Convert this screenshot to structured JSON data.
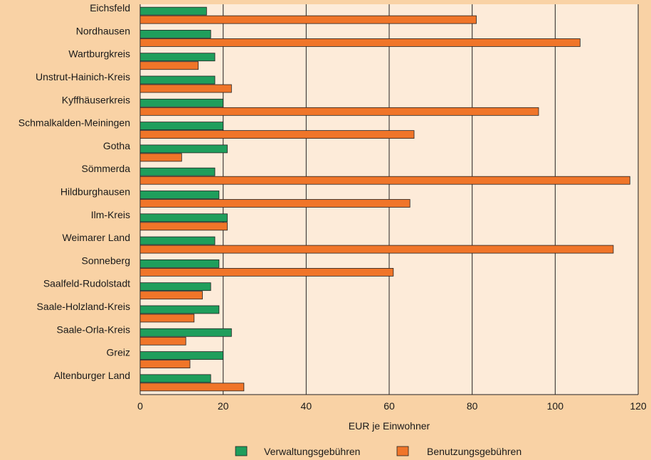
{
  "chart_data": {
    "type": "bar",
    "orientation": "horizontal",
    "title": "",
    "xlabel": "EUR je Einwohner",
    "ylabel": "",
    "xlim": [
      0,
      120
    ],
    "xticks": [
      0,
      20,
      40,
      60,
      80,
      100,
      120
    ],
    "grid": "vertical",
    "legend_position": "bottom",
    "categories": [
      "Eichsfeld",
      "Nordhausen",
      "Wartburgkreis",
      "Unstrut-Hainich-Kreis",
      "Kyffhäuserkreis",
      "Schmalkalden-Meiningen",
      "Gotha",
      "Sömmerda",
      "Hildburghausen",
      "Ilm-Kreis",
      "Weimarer Land",
      "Sonneberg",
      "Saalfeld-Rudolstadt",
      "Saale-Holzland-Kreis",
      "Saale-Orla-Kreis",
      "Greiz",
      "Altenburger Land"
    ],
    "series": [
      {
        "name": "Verwaltungsgebühren",
        "color": "#1f9e5c",
        "values": [
          16,
          17,
          18,
          18,
          20,
          20,
          21,
          18,
          19,
          21,
          18,
          19,
          17,
          19,
          22,
          20,
          17
        ]
      },
      {
        "name": "Benutzungsgebühren",
        "color": "#f07529",
        "values": [
          81,
          106,
          14,
          22,
          96,
          66,
          10,
          118,
          65,
          21,
          114,
          61,
          15,
          13,
          11,
          12,
          25
        ]
      }
    ],
    "colors": {
      "plot_background": "#fdebd9",
      "page_background": "#f9d2a5",
      "grid": "#222222"
    }
  }
}
